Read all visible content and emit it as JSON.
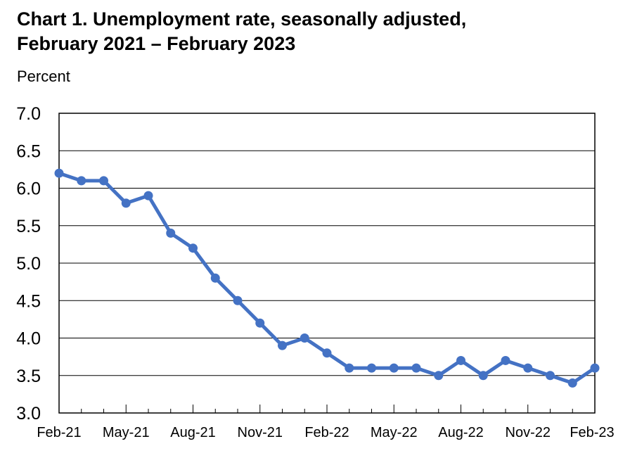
{
  "chart_data": {
    "type": "line",
    "title": "Chart 1. Unemployment rate, seasonally adjusted,",
    "subtitle": "February 2021 – February 2023",
    "xlabel": "",
    "ylabel": "Percent",
    "ylim": [
      3.0,
      7.0
    ],
    "yticks": [
      "7.0",
      "6.5",
      "6.0",
      "5.5",
      "5.0",
      "4.5",
      "4.0",
      "3.5",
      "3.0"
    ],
    "xtick_labels": [
      "Feb-21",
      "May-21",
      "Aug-21",
      "Nov-21",
      "Feb-22",
      "May-22",
      "Aug-22",
      "Nov-22",
      "Feb-23"
    ],
    "grid": true,
    "series": [
      {
        "name": "Unemployment rate",
        "color": "#4472c4",
        "values": [
          6.2,
          6.1,
          6.1,
          5.8,
          5.9,
          5.4,
          5.2,
          4.8,
          4.5,
          4.2,
          3.9,
          4.0,
          3.8,
          3.6,
          3.6,
          3.6,
          3.6,
          3.5,
          3.7,
          3.5,
          3.7,
          3.6,
          3.5,
          3.4,
          3.6
        ]
      }
    ]
  }
}
